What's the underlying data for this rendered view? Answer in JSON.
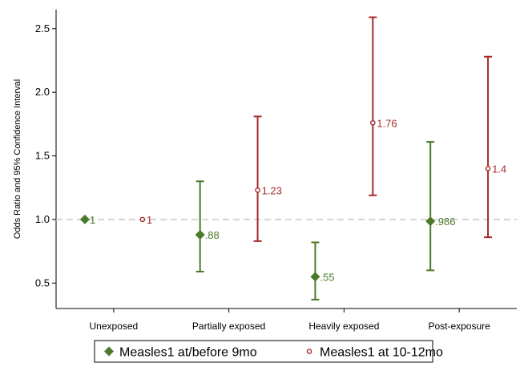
{
  "chart_data": {
    "type": "scatter",
    "title": "",
    "xlabel": "",
    "ylabel": "Odds Ratio and 95% Confidence Interval",
    "ylim": [
      0.3,
      2.65
    ],
    "yticks": [
      "0.5",
      "1.0",
      "1.5",
      "2.0",
      "2.5"
    ],
    "categories": [
      "Unexposed",
      "Partially exposed",
      "Heavily exposed",
      "Post-exposure"
    ],
    "reference_line": 1.0,
    "grid": false,
    "legend_position": "bottom",
    "series": [
      {
        "name": "Measles1 at/before 9mo",
        "marker": "diamond",
        "color": "#4b7a2a",
        "values": [
          1,
          0.88,
          0.55,
          0.986
        ],
        "lower": [
          null,
          0.59,
          0.37,
          0.6
        ],
        "upper": [
          null,
          1.3,
          0.82,
          1.61
        ],
        "labels": [
          "1",
          ".88",
          ".55",
          ".986"
        ]
      },
      {
        "name": "Measles1 at 10-12mo",
        "marker": "circle",
        "color": "#a52a2a",
        "values": [
          1,
          1.23,
          1.76,
          1.4
        ],
        "lower": [
          null,
          0.83,
          1.19,
          0.86
        ],
        "upper": [
          null,
          1.81,
          2.59,
          2.28
        ],
        "labels": [
          "1",
          "1.23",
          "1.76",
          "1.4"
        ]
      }
    ]
  }
}
